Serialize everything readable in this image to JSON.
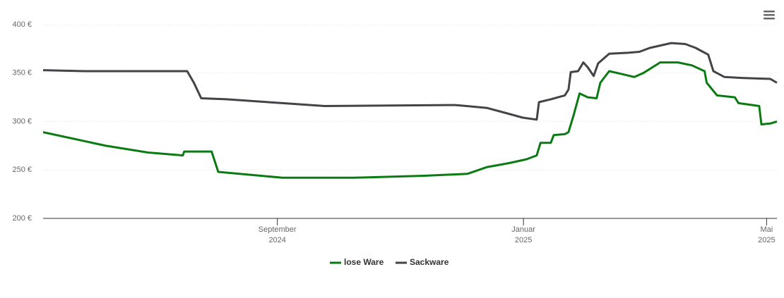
{
  "chart_data": {
    "type": "line",
    "xlim": [
      2024.35,
      2025.343
    ],
    "xticks": [
      {
        "value": 2024.667,
        "label": "September",
        "sublabel": "2024"
      },
      {
        "value": 2025.0,
        "label": "Januar",
        "sublabel": "2025"
      },
      {
        "value": 2025.329,
        "label": "Mai",
        "sublabel": "2025"
      }
    ],
    "ylim": [
      200,
      400
    ],
    "yticks": [
      {
        "value": 200,
        "label": "200 €"
      },
      {
        "value": 250,
        "label": "250 €"
      },
      {
        "value": 300,
        "label": "300 €"
      },
      {
        "value": 350,
        "label": "350 €"
      },
      {
        "value": 400,
        "label": "400 €"
      }
    ],
    "grid": true,
    "legend": "bottom",
    "series": [
      {
        "name": "lose Ware",
        "color": "#0a7a12",
        "x": [
          2024.35,
          2024.435,
          2024.492,
          2024.539,
          2024.541,
          2024.578,
          2024.587,
          2024.674,
          2024.77,
          2024.865,
          2024.924,
          2024.951,
          2024.98,
          2025.004,
          2025.018,
          2025.023,
          2025.037,
          2025.041,
          2025.056,
          2025.061,
          2025.068,
          2025.076,
          2025.087,
          2025.099,
          2025.104,
          2025.116,
          2025.133,
          2025.15,
          2025.162,
          2025.185,
          2025.209,
          2025.228,
          2025.245,
          2025.248,
          2025.262,
          2025.286,
          2025.291,
          2025.319,
          2025.322,
          2025.334,
          2025.343
        ],
        "values": [
          289,
          275,
          268,
          265,
          269,
          269,
          248,
          242,
          242,
          244,
          246,
          253,
          257,
          261,
          265,
          278,
          278,
          286,
          287,
          289,
          307,
          329,
          325,
          324,
          340,
          352,
          349,
          346,
          350,
          361,
          361,
          358,
          352,
          340,
          327,
          325,
          319,
          316,
          297,
          298,
          300
        ]
      },
      {
        "name": "Sackware",
        "color": "#434348",
        "x": [
          2024.35,
          2024.406,
          2024.545,
          2024.554,
          2024.564,
          2024.598,
          2024.674,
          2024.731,
          2024.908,
          2024.923,
          2024.951,
          2024.98,
          2024.999,
          2025.018,
          2025.021,
          2025.037,
          2025.056,
          2025.061,
          2025.064,
          2025.074,
          2025.081,
          2025.087,
          2025.095,
          2025.101,
          2025.116,
          2025.142,
          2025.157,
          2025.171,
          2025.2,
          2025.219,
          2025.233,
          2025.25,
          2025.257,
          2025.272,
          2025.295,
          2025.334,
          2025.343
        ],
        "values": [
          353,
          352,
          352,
          340,
          324,
          323,
          319,
          316,
          317,
          316,
          314,
          308,
          304,
          302,
          320,
          323,
          327,
          333,
          351,
          352,
          361,
          356,
          347,
          360,
          370,
          371,
          372,
          376,
          381,
          380,
          376,
          369,
          352,
          346,
          345,
          344,
          340
        ]
      }
    ]
  }
}
